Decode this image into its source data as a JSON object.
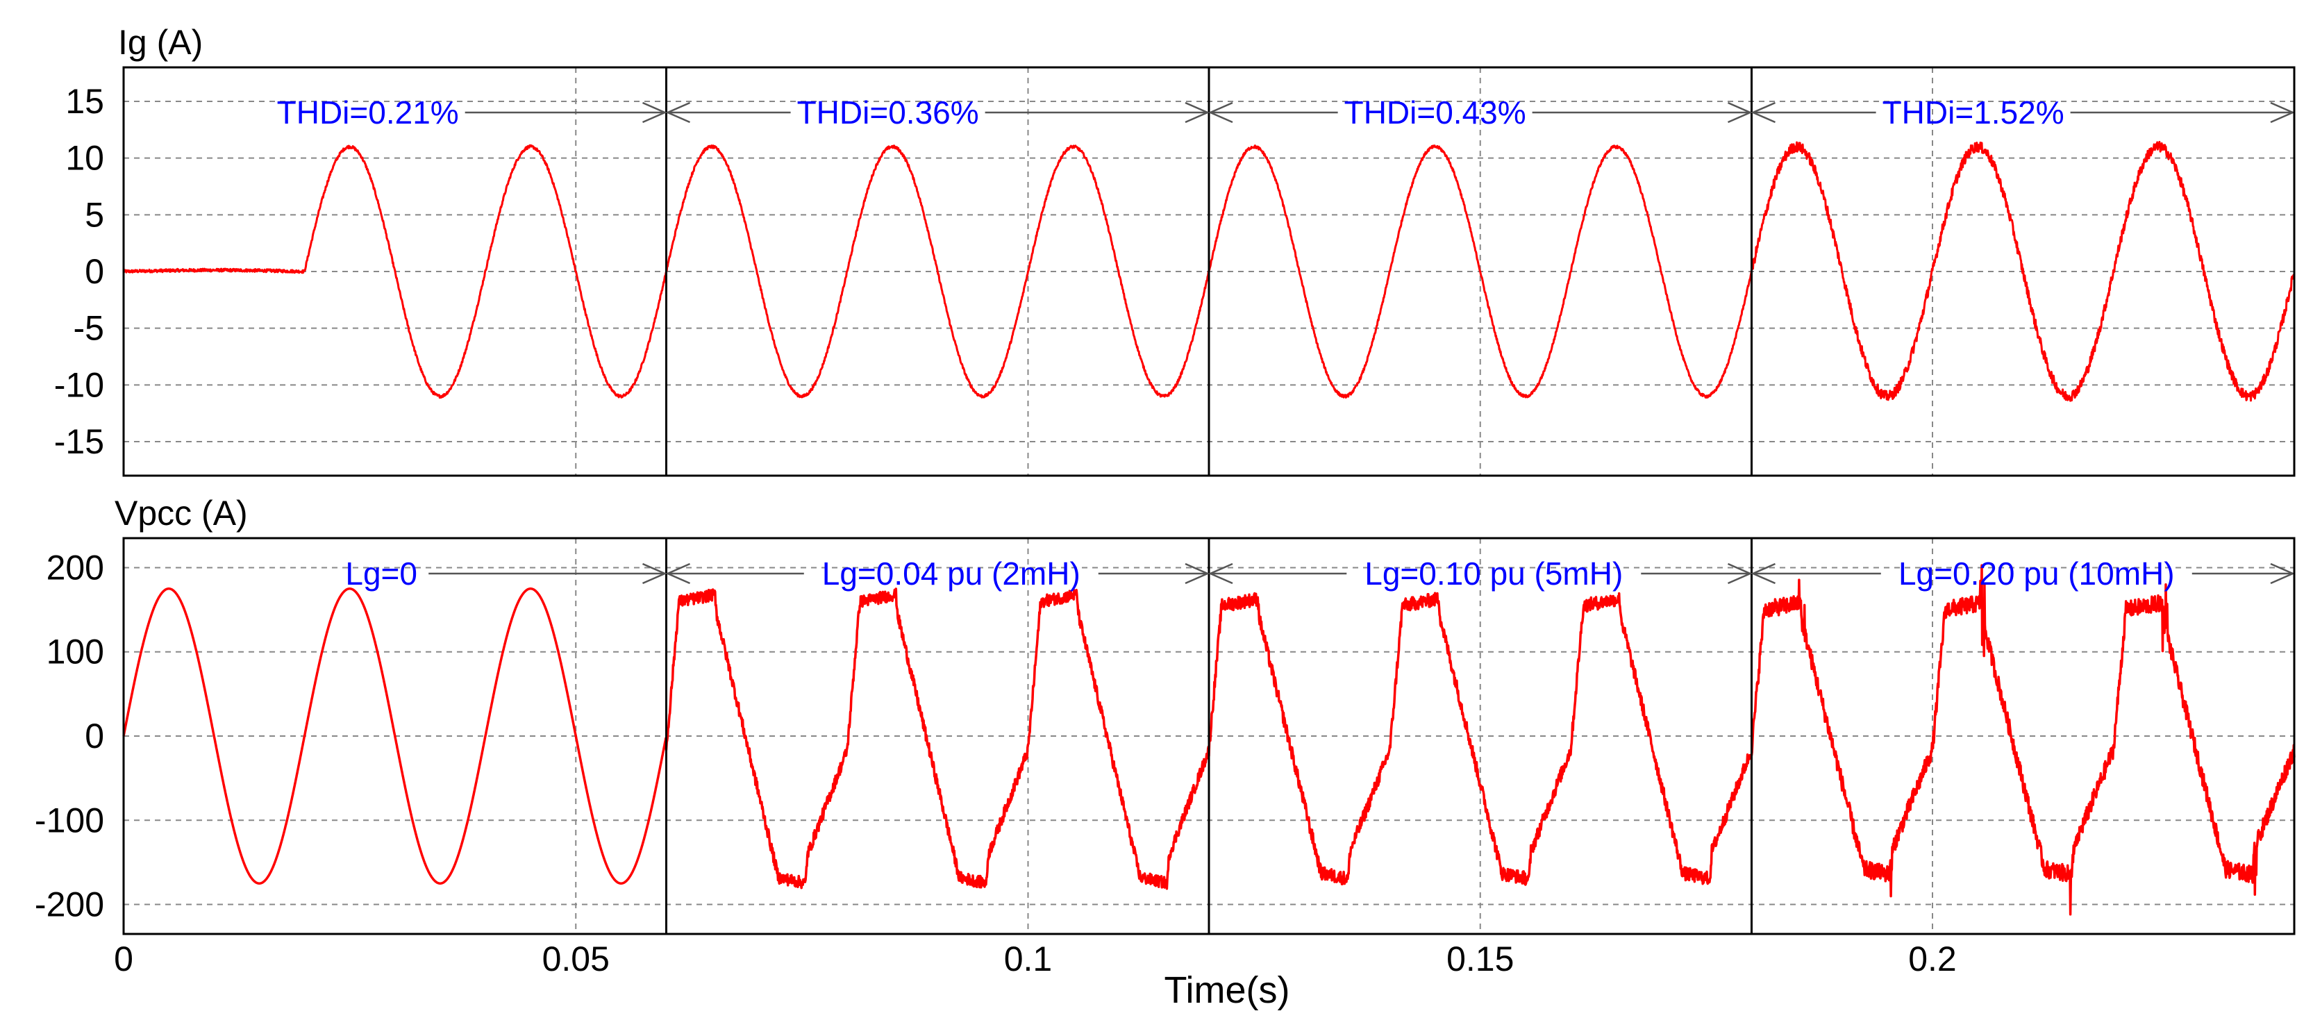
{
  "chart_data": {
    "type": "line",
    "xlabel": "Time(s)",
    "x_ticks": [
      {
        "value": 0,
        "label": "0"
      },
      {
        "value": 0.05,
        "label": "0.05"
      },
      {
        "value": 0.1,
        "label": "0.1"
      },
      {
        "value": 0.15,
        "label": "0.15"
      },
      {
        "value": 0.2,
        "label": "0.2"
      }
    ],
    "xlim": [
      0,
      0.24
    ],
    "grid": true,
    "colors": {
      "trace": "#ff0000",
      "annotation": "#0000ff",
      "ylabel": "#ff0000",
      "divider": "#000000",
      "grid": "#888888",
      "arrow": "#555555"
    },
    "segment_boundaries": [
      0.06,
      0.12,
      0.18
    ],
    "panels": [
      {
        "name": "Ig",
        "ylabel": "Ig (A)",
        "ylim": [
          -18,
          18
        ],
        "yticks": [
          15,
          10,
          5,
          0,
          -5,
          -10,
          -15
        ],
        "ytick_labels": [
          "15",
          "10",
          "5",
          "0",
          "-5",
          "-10",
          "-15"
        ],
        "series": {
          "name": "Ig",
          "frequency_hz": 50,
          "amplitude": 11,
          "startup_end": 0.02,
          "pre_startup_level": 0.2
        },
        "annotations": [
          {
            "text": "THDi=0.21%",
            "x": 0.027,
            "range": [
              0,
              0.06
            ]
          },
          {
            "text": "THDi=0.36%",
            "x": 0.0845,
            "range": [
              0.06,
              0.12
            ]
          },
          {
            "text": "THDi=0.43%",
            "x": 0.145,
            "range": [
              0.12,
              0.18
            ]
          },
          {
            "text": "THDi=1.52%",
            "x": 0.2045,
            "range": [
              0.18,
              0.24
            ]
          }
        ]
      },
      {
        "name": "Vpcc",
        "ylabel": "Vpcc (A)",
        "ylim": [
          -235,
          235
        ],
        "yticks": [
          200,
          100,
          0,
          -100,
          -200
        ],
        "ytick_labels": [
          "200",
          "100",
          "0",
          "-100",
          "-200"
        ],
        "series": {
          "name": "Vpcc",
          "frequency_hz": 50,
          "amplitude": 175,
          "segment_plateaus": [
            0,
            168,
            163,
            158
          ]
        },
        "annotations": [
          {
            "text": "Lg=0",
            "x": 0.0285,
            "range": [
              0,
              0.06
            ]
          },
          {
            "text": "Lg=0.04 pu (2mH)",
            "x": 0.0915,
            "range": [
              0.06,
              0.12
            ]
          },
          {
            "text": "Lg=0.10 pu (5mH)",
            "x": 0.1515,
            "range": [
              0.12,
              0.18
            ]
          },
          {
            "text": "Lg=0.20 pu (10mH)",
            "x": 0.2115,
            "range": [
              0.18,
              0.24
            ]
          }
        ]
      }
    ]
  }
}
